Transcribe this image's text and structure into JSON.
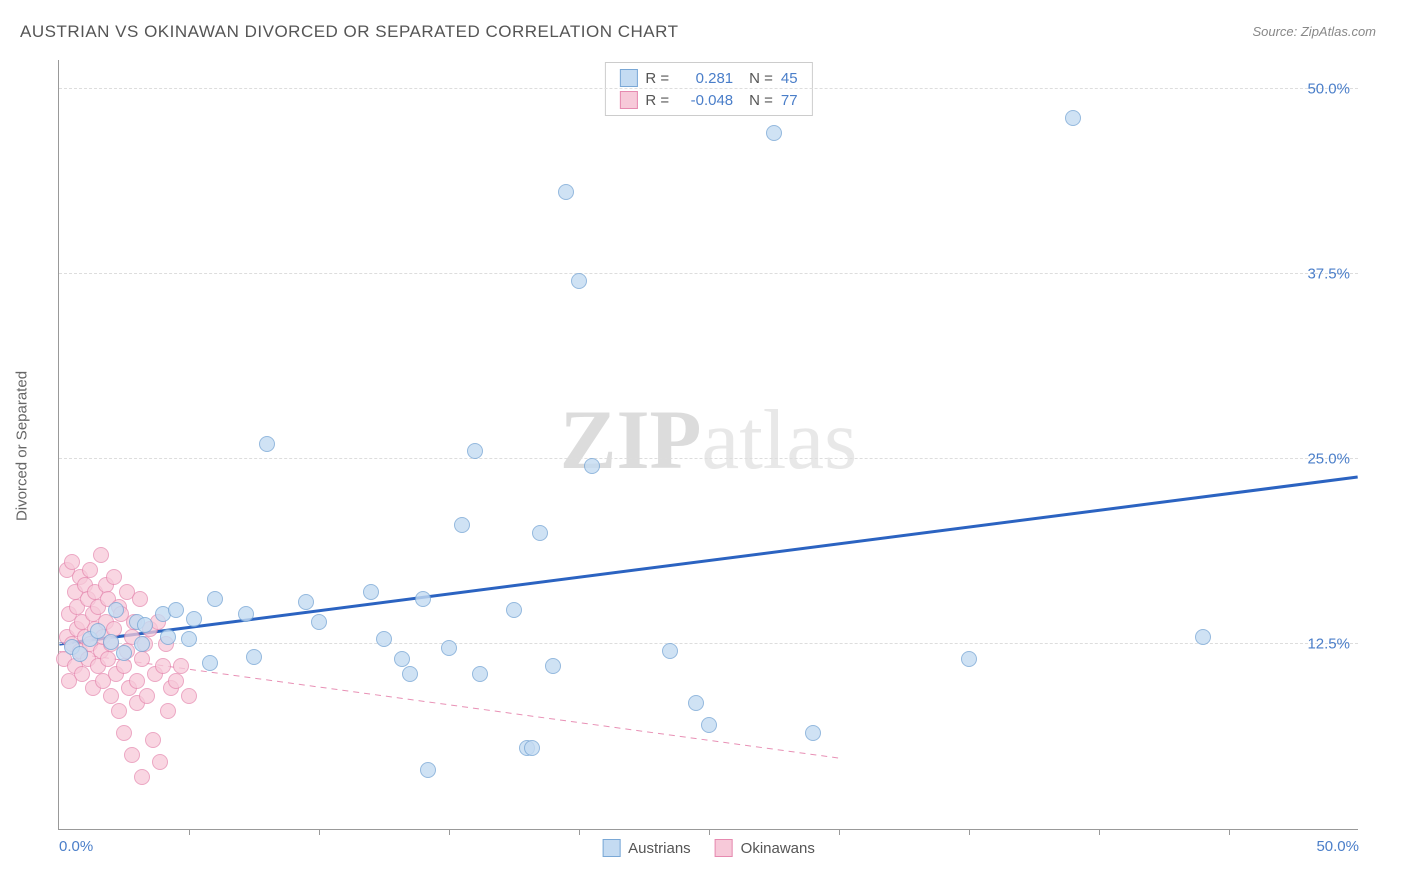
{
  "title": "AUSTRIAN VS OKINAWAN DIVORCED OR SEPARATED CORRELATION CHART",
  "source": "Source: ZipAtlas.com",
  "watermark": {
    "bold": "ZIP",
    "rest": "atlas"
  },
  "ylabel": "Divorced or Separated",
  "chart": {
    "type": "scatter",
    "xlim": [
      0,
      50
    ],
    "ylim": [
      0,
      52
    ],
    "x_start_label": "0.0%",
    "x_end_label": "50.0%",
    "yticks": [
      12.5,
      25.0,
      37.5,
      50.0
    ],
    "ytick_labels": [
      "12.5%",
      "25.0%",
      "37.5%",
      "50.0%"
    ],
    "xtick_positions": [
      5,
      10,
      15,
      20,
      25,
      30,
      35,
      40,
      45
    ],
    "grid_color": "#dddddd",
    "background_color": "#ffffff",
    "marker_radius": 8,
    "series": [
      {
        "name": "Austrians",
        "fill": "#c4dbf2",
        "stroke": "#7aa8d6",
        "opacity": 0.8,
        "trend": {
          "y_at_x0": 12.5,
          "y_at_x50": 23.8,
          "color": "#2b63c1",
          "width": 3,
          "dash": "none"
        },
        "R": "0.281",
        "N": "45",
        "points": [
          [
            0.5,
            12.3
          ],
          [
            0.8,
            11.8
          ],
          [
            1.2,
            12.8
          ],
          [
            1.5,
            13.4
          ],
          [
            2.0,
            12.6
          ],
          [
            2.2,
            14.8
          ],
          [
            2.5,
            11.9
          ],
          [
            3.0,
            14.0
          ],
          [
            3.2,
            12.5
          ],
          [
            3.3,
            13.8
          ],
          [
            4.0,
            14.5
          ],
          [
            4.2,
            13.0
          ],
          [
            4.5,
            14.8
          ],
          [
            5.0,
            12.8
          ],
          [
            5.2,
            14.2
          ],
          [
            5.8,
            11.2
          ],
          [
            6.0,
            15.5
          ],
          [
            7.2,
            14.5
          ],
          [
            7.5,
            11.6
          ],
          [
            8.0,
            26.0
          ],
          [
            9.5,
            15.3
          ],
          [
            10.0,
            14.0
          ],
          [
            12.0,
            16.0
          ],
          [
            12.5,
            12.8
          ],
          [
            13.2,
            11.5
          ],
          [
            13.5,
            10.5
          ],
          [
            14.0,
            15.5
          ],
          [
            14.2,
            4.0
          ],
          [
            15.0,
            12.2
          ],
          [
            15.5,
            20.5
          ],
          [
            16.0,
            25.5
          ],
          [
            16.2,
            10.5
          ],
          [
            17.5,
            14.8
          ],
          [
            18.0,
            5.5
          ],
          [
            18.2,
            5.5
          ],
          [
            18.5,
            20.0
          ],
          [
            19.0,
            11.0
          ],
          [
            19.5,
            43.0
          ],
          [
            20.0,
            37.0
          ],
          [
            20.5,
            24.5
          ],
          [
            23.5,
            12.0
          ],
          [
            24.5,
            8.5
          ],
          [
            25.0,
            7.0
          ],
          [
            27.5,
            47.0
          ],
          [
            29.0,
            6.5
          ],
          [
            35.0,
            11.5
          ],
          [
            39.0,
            48.0
          ],
          [
            44.0,
            13.0
          ]
        ]
      },
      {
        "name": "Okinawans",
        "fill": "#f7c9d9",
        "stroke": "#e68ab0",
        "opacity": 0.75,
        "trend": {
          "y_at_x0": 12.0,
          "y_at_x50": 0.0,
          "color": "#e890b5",
          "width": 1,
          "dash": "6,5",
          "x_cut": 30
        },
        "R": "-0.048",
        "N": "77",
        "points": [
          [
            0.2,
            11.5
          ],
          [
            0.3,
            13.0
          ],
          [
            0.3,
            17.5
          ],
          [
            0.4,
            10.0
          ],
          [
            0.4,
            14.5
          ],
          [
            0.5,
            18.0
          ],
          [
            0.5,
            12.5
          ],
          [
            0.6,
            16.0
          ],
          [
            0.6,
            11.0
          ],
          [
            0.7,
            15.0
          ],
          [
            0.7,
            13.5
          ],
          [
            0.8,
            17.0
          ],
          [
            0.8,
            12.0
          ],
          [
            0.9,
            14.0
          ],
          [
            0.9,
            10.5
          ],
          [
            1.0,
            16.5
          ],
          [
            1.0,
            13.0
          ],
          [
            1.1,
            15.5
          ],
          [
            1.1,
            11.5
          ],
          [
            1.2,
            17.5
          ],
          [
            1.2,
            12.5
          ],
          [
            1.3,
            14.5
          ],
          [
            1.3,
            9.5
          ],
          [
            1.4,
            16.0
          ],
          [
            1.4,
            13.5
          ],
          [
            1.5,
            11.0
          ],
          [
            1.5,
            15.0
          ],
          [
            1.6,
            12.0
          ],
          [
            1.6,
            18.5
          ],
          [
            1.7,
            13.0
          ],
          [
            1.7,
            10.0
          ],
          [
            1.8,
            14.0
          ],
          [
            1.8,
            16.5
          ],
          [
            1.9,
            11.5
          ],
          [
            1.9,
            15.5
          ],
          [
            2.0,
            9.0
          ],
          [
            2.0,
            12.5
          ],
          [
            2.1,
            17.0
          ],
          [
            2.1,
            13.5
          ],
          [
            2.2,
            10.5
          ],
          [
            2.3,
            15.0
          ],
          [
            2.3,
            8.0
          ],
          [
            2.4,
            14.5
          ],
          [
            2.5,
            11.0
          ],
          [
            2.5,
            6.5
          ],
          [
            2.6,
            16.0
          ],
          [
            2.6,
            12.0
          ],
          [
            2.7,
            9.5
          ],
          [
            2.8,
            13.0
          ],
          [
            2.8,
            5.0
          ],
          [
            2.9,
            14.0
          ],
          [
            3.0,
            10.0
          ],
          [
            3.0,
            8.5
          ],
          [
            3.1,
            15.5
          ],
          [
            3.2,
            11.5
          ],
          [
            3.2,
            3.5
          ],
          [
            3.3,
            12.5
          ],
          [
            3.4,
            9.0
          ],
          [
            3.5,
            13.5
          ],
          [
            3.6,
            6.0
          ],
          [
            3.7,
            10.5
          ],
          [
            3.8,
            14.0
          ],
          [
            3.9,
            4.5
          ],
          [
            4.0,
            11.0
          ],
          [
            4.1,
            12.5
          ],
          [
            4.2,
            8.0
          ],
          [
            4.3,
            9.5
          ],
          [
            4.5,
            10.0
          ],
          [
            4.7,
            11.0
          ],
          [
            5.0,
            9.0
          ]
        ]
      }
    ]
  },
  "legend_top": {
    "r_label": "R =",
    "n_label": "N ="
  },
  "legend_bottom": {
    "items": [
      "Austrians",
      "Okinawans"
    ]
  }
}
